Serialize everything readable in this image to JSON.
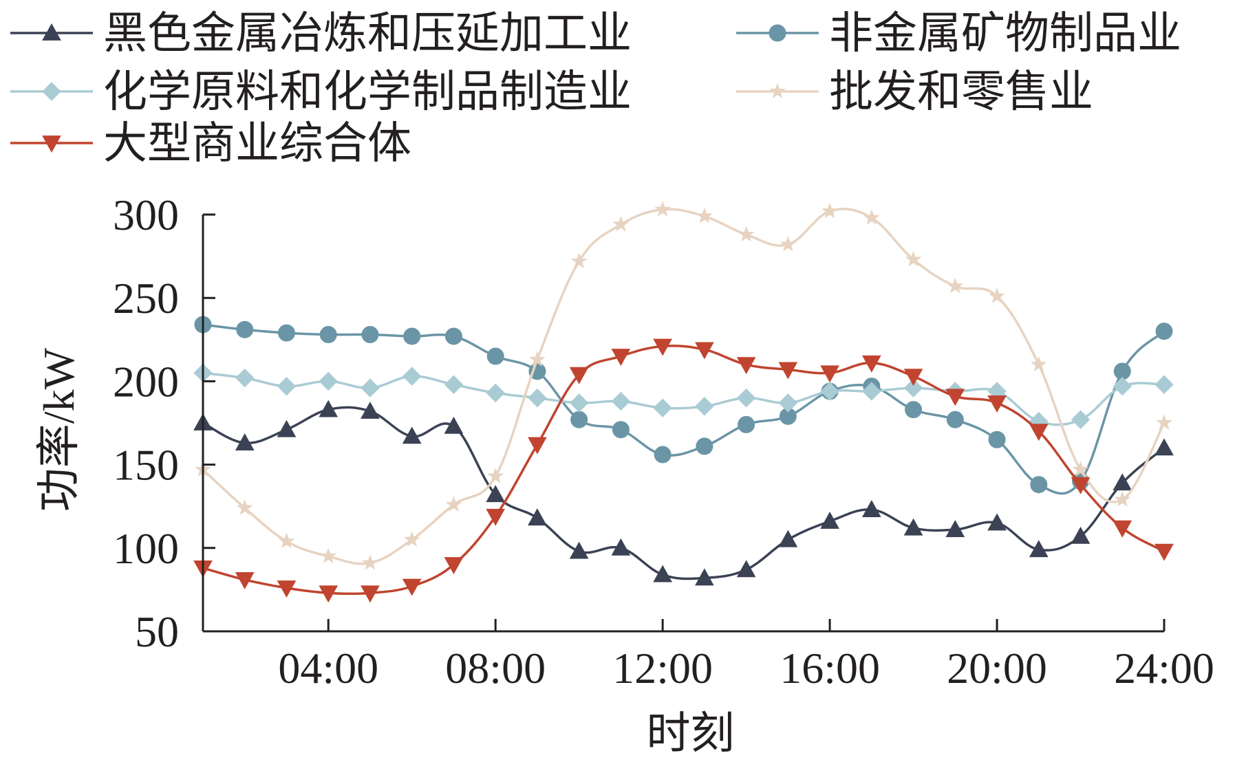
{
  "chart_data": {
    "type": "line",
    "title": "",
    "xlabel": "时刻",
    "ylabel": "功率/kW",
    "x": [
      1,
      2,
      3,
      4,
      5,
      6,
      7,
      8,
      9,
      10,
      11,
      12,
      13,
      14,
      15,
      16,
      17,
      18,
      19,
      20,
      21,
      22,
      23,
      24
    ],
    "xlim": [
      1,
      24
    ],
    "ylim": [
      50,
      300
    ],
    "xticks": [
      4,
      8,
      12,
      16,
      20,
      24
    ],
    "xtick_labels": [
      "04:00",
      "08:00",
      "12:00",
      "16:00",
      "20:00",
      "24:00"
    ],
    "yticks": [
      50,
      100,
      150,
      200,
      250,
      300
    ],
    "ytick_labels": [
      "50",
      "100",
      "150",
      "200",
      "250",
      "300"
    ],
    "grid": false,
    "legend_position": "top",
    "series": [
      {
        "name": "黑色金属冶炼和压延加工业",
        "color": "#3a4254",
        "marker": "triangle-up",
        "values": [
          175,
          163,
          171,
          183,
          182,
          167,
          173,
          132,
          118,
          98,
          100,
          84,
          82,
          87,
          105,
          116,
          123,
          112,
          111,
          115,
          99,
          107,
          139,
          160
        ]
      },
      {
        "name": "非金属矿物制品业",
        "color": "#6a95a6",
        "marker": "circle",
        "values": [
          234,
          231,
          229,
          228,
          228,
          227,
          227,
          215,
          206,
          177,
          171,
          156,
          161,
          174,
          179,
          194,
          197,
          183,
          177,
          165,
          138,
          140,
          206,
          230
        ]
      },
      {
        "name": "化学原料和化学制品制造业",
        "color": "#a9cbd4",
        "marker": "diamond",
        "values": [
          205,
          202,
          197,
          200,
          196,
          203,
          198,
          193,
          190,
          187,
          188,
          184,
          185,
          190,
          187,
          194,
          194,
          196,
          194,
          194,
          176,
          177,
          197,
          198
        ]
      },
      {
        "name": "批发和零售业",
        "color": "#e7d3c1",
        "marker": "star",
        "values": [
          147,
          124,
          104,
          95,
          91,
          105,
          126,
          143,
          213,
          272,
          294,
          303,
          299,
          288,
          282,
          302,
          298,
          273,
          257,
          251,
          210,
          147,
          129,
          175
        ]
      },
      {
        "name": "大型商业综合体",
        "color": "#c0442f",
        "marker": "triangle-down",
        "values": [
          88,
          81,
          76,
          73,
          73,
          77,
          90,
          119,
          162,
          204,
          215,
          221,
          219,
          210,
          207,
          205,
          211,
          203,
          191,
          187,
          170,
          138,
          112,
          98
        ]
      }
    ]
  }
}
